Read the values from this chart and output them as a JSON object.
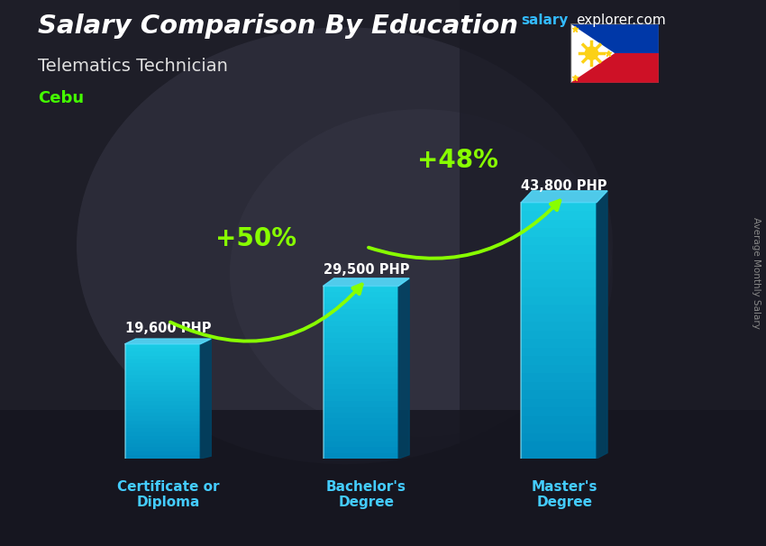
{
  "title": "Salary Comparison By Education",
  "subtitle": "Telematics Technician",
  "location": "Cebu",
  "site_salary": "salary",
  "site_explorer": "explorer",
  "site_dot": ".",
  "site_com": "com",
  "ylabel": "Average Monthly Salary",
  "categories": [
    "Certificate or\nDiploma",
    "Bachelor's\nDegree",
    "Master's\nDegree"
  ],
  "values": [
    19600,
    29500,
    43800
  ],
  "value_labels": [
    "19,600 PHP",
    "29,500 PHP",
    "43,800 PHP"
  ],
  "pct_labels": [
    "+50%",
    "+48%"
  ],
  "bar_color_face": "#00aadd",
  "bar_color_light": "#33ccff",
  "bar_color_right": "#0077aa",
  "bar_color_top": "#55ddff",
  "bg_dark": "#1a1a2e",
  "title_color": "#ffffff",
  "subtitle_color": "#e0e0e0",
  "location_color": "#44ff00",
  "site_color": "#33aaff",
  "value_label_color": "#ffffff",
  "pct_color": "#88ff00",
  "xlabel_color": "#44ccff",
  "bar_width": 0.38,
  "ylim": [
    0,
    56000
  ],
  "figsize": [
    8.5,
    6.06
  ],
  "dpi": 100
}
